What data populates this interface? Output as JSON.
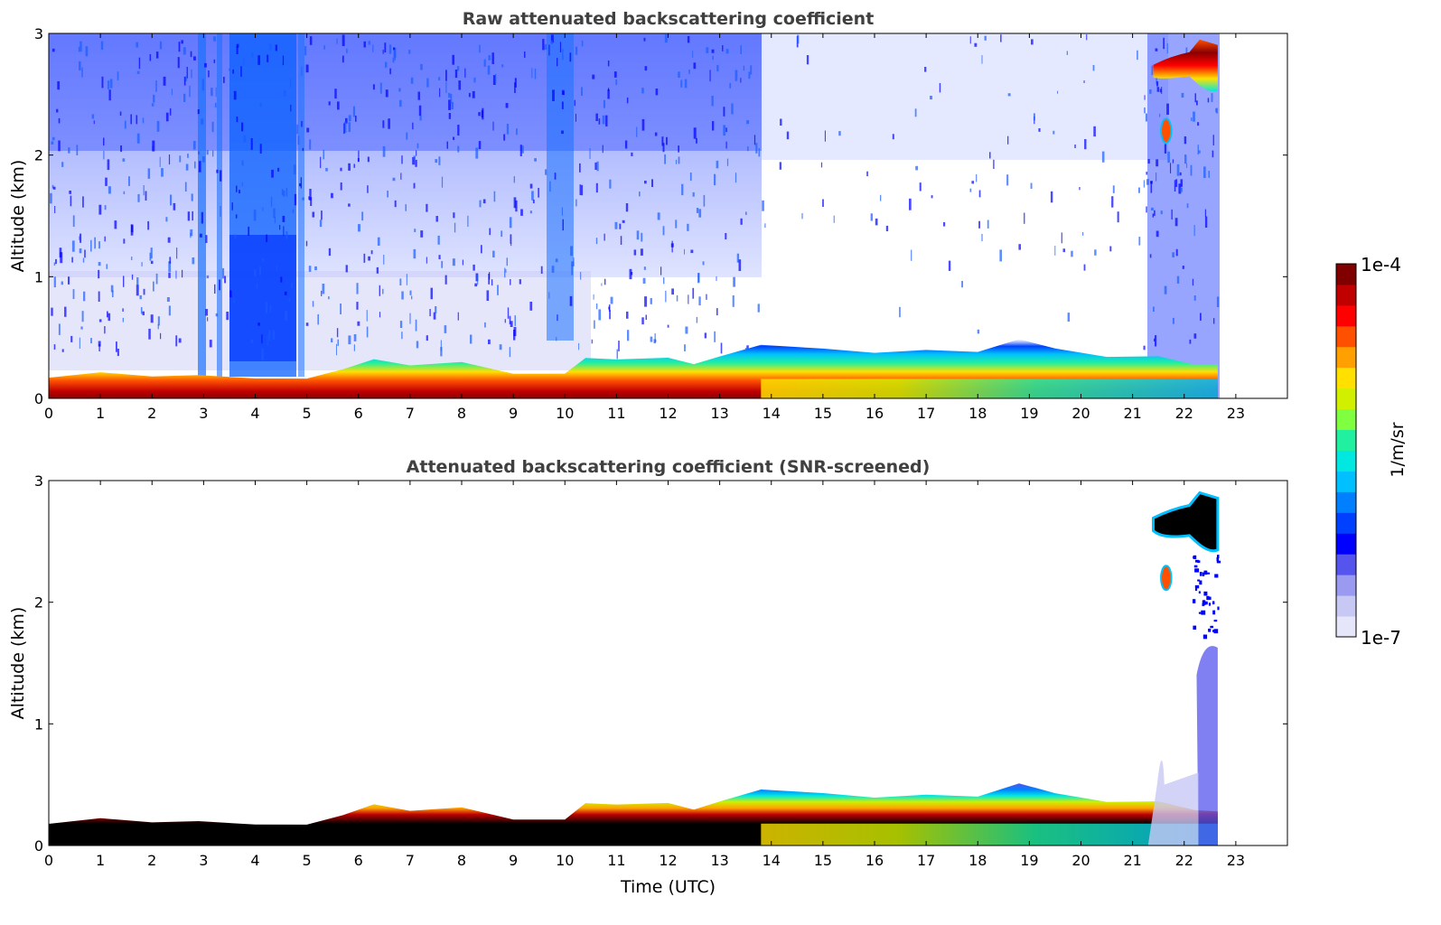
{
  "chart_data": [
    {
      "type": "heatmap",
      "title": "Raw attenuated backscattering coefficient",
      "xlabel": "",
      "ylabel": "Altitude (km)",
      "xlim": [
        0,
        24
      ],
      "ylim": [
        0,
        3
      ],
      "xticks": [
        "0",
        "1",
        "2",
        "3",
        "4",
        "5",
        "6",
        "7",
        "8",
        "9",
        "10",
        "11",
        "12",
        "13",
        "14",
        "15",
        "16",
        "17",
        "18",
        "19",
        "20",
        "21",
        "22",
        "23"
      ],
      "yticks": [
        "0",
        "1",
        "2",
        "3"
      ],
      "data_extent_hours": 22.65,
      "boundary_layer_top_km": [
        [
          0,
          0.17
        ],
        [
          1,
          0.2
        ],
        [
          2,
          0.2
        ],
        [
          2.9,
          0.18
        ],
        [
          4,
          0.16
        ],
        [
          5,
          0.18
        ],
        [
          5.7,
          0.22
        ],
        [
          6.3,
          0.33
        ],
        [
          7,
          0.28
        ],
        [
          8,
          0.28
        ],
        [
          9,
          0.22
        ],
        [
          10,
          0.2
        ],
        [
          10.4,
          0.32
        ],
        [
          11,
          0.34
        ],
        [
          12,
          0.32
        ],
        [
          12.5,
          0.28
        ],
        [
          13,
          0.36
        ],
        [
          13.8,
          0.42
        ],
        [
          15,
          0.42
        ],
        [
          16,
          0.38
        ],
        [
          17,
          0.38
        ],
        [
          18,
          0.4
        ],
        [
          18.8,
          0.48
        ],
        [
          19.5,
          0.4
        ],
        [
          20.5,
          0.36
        ],
        [
          21.5,
          0.33
        ],
        [
          22.2,
          0.28
        ]
      ],
      "features": [
        {
          "label": "upper cloud",
          "x": [
            21.4,
            22.65
          ],
          "y": [
            2.5,
            2.95
          ]
        },
        {
          "label": "small cloud",
          "x": [
            21.55,
            21.75
          ],
          "y": [
            2.1,
            2.3
          ]
        }
      ]
    },
    {
      "type": "heatmap",
      "title": "Attenuated backscattering coefficient (SNR-screened)",
      "xlabel": "Time (UTC)",
      "ylabel": "Altitude (km)",
      "xlim": [
        0,
        24
      ],
      "ylim": [
        0,
        3
      ],
      "xticks": [
        "0",
        "1",
        "2",
        "3",
        "4",
        "5",
        "6",
        "7",
        "8",
        "9",
        "10",
        "11",
        "12",
        "13",
        "14",
        "15",
        "16",
        "17",
        "18",
        "19",
        "20",
        "21",
        "22",
        "23"
      ],
      "yticks": [
        "0",
        "1",
        "2",
        "3"
      ],
      "data_extent_hours": 22.65,
      "features": [
        {
          "label": "upper cloud",
          "x": [
            21.4,
            22.65
          ],
          "y": [
            2.4,
            2.9
          ]
        },
        {
          "label": "small cloud",
          "x": [
            21.55,
            21.75
          ],
          "y": [
            2.1,
            2.3
          ]
        },
        {
          "label": "aerosol column",
          "x": [
            22.1,
            22.65
          ],
          "y": [
            0,
            1.7
          ]
        }
      ]
    }
  ],
  "colorbar": {
    "label": "1/m/sr",
    "max_label": "1e-4",
    "min_label": "1e-7",
    "scale": "log",
    "colors": [
      "#e6e6fa",
      "#c8c8f5",
      "#9a9af0",
      "#5555ee",
      "#0000ff",
      "#0040ff",
      "#0080ff",
      "#00c0ff",
      "#00e8e0",
      "#20f0a0",
      "#80ff40",
      "#d0f000",
      "#ffe000",
      "#ffa000",
      "#ff5000",
      "#ff0000",
      "#c00000",
      "#800000"
    ]
  }
}
